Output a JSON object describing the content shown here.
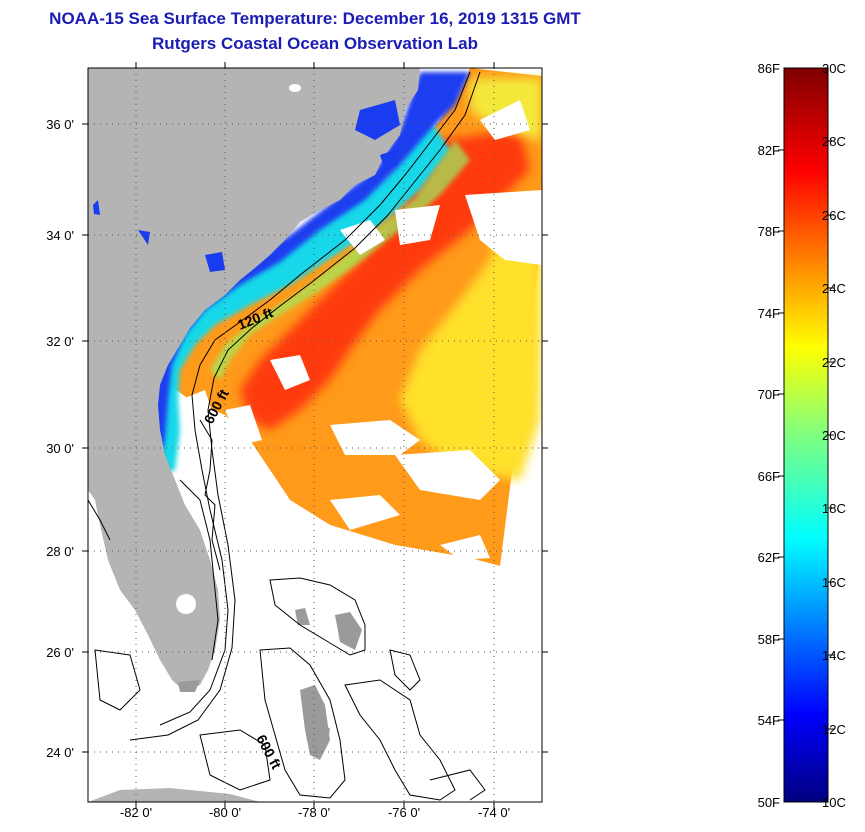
{
  "title": {
    "line1": "NOAA-15 Sea Surface Temperature:  December 16, 2019 1315 GMT",
    "line2": "Rutgers Coastal Ocean Observation Lab"
  },
  "map": {
    "lat_ticks": [
      "36 0'",
      "34 0'",
      "32 0'",
      "30 0'",
      "28 0'",
      "26 0'",
      "24 0'"
    ],
    "lon_ticks": [
      "-82 0'",
      "-80 0'",
      "-78 0'",
      "-76 0'",
      "-74 0'"
    ],
    "contour_labels": [
      "120 ft",
      "600 ft",
      "600 ft"
    ],
    "land_color": "#b4b4b4",
    "no_data_color": "#ffffff"
  },
  "colorbar": {
    "fahrenheit_labels": [
      "86F",
      "82F",
      "78F",
      "74F",
      "70F",
      "66F",
      "62F",
      "58F",
      "54F",
      "50F"
    ],
    "celsius_labels": [
      "30C",
      "28C",
      "26C",
      "24C",
      "22C",
      "20C",
      "18C",
      "16C",
      "14C",
      "12C",
      "10C"
    ]
  }
}
